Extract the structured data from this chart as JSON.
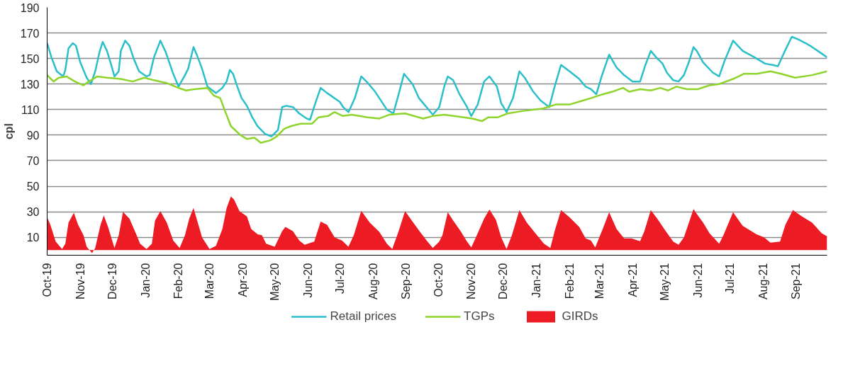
{
  "chart_data": {
    "type": "line",
    "ylabel": "cpl",
    "xlim": [
      "2019-10-01",
      "2021-09-30"
    ],
    "ylim": [
      -4,
      190
    ],
    "yticks": [
      10,
      30,
      50,
      70,
      90,
      110,
      130,
      150,
      170,
      190
    ],
    "xticks": [
      {
        "value": "2019-10-01",
        "label": "Oct-19"
      },
      {
        "value": "2019-11-01",
        "label": "Nov-19"
      },
      {
        "value": "2019-12-01",
        "label": "Dec-19"
      },
      {
        "value": "2020-01-01",
        "label": "Jan-20"
      },
      {
        "value": "2020-02-01",
        "label": "Feb-20"
      },
      {
        "value": "2020-03-01",
        "label": "Mar-20"
      },
      {
        "value": "2020-04-01",
        "label": "Apr-20"
      },
      {
        "value": "2020-05-01",
        "label": "May-20"
      },
      {
        "value": "2020-06-01",
        "label": "Jun-20"
      },
      {
        "value": "2020-07-01",
        "label": "Jul-20"
      },
      {
        "value": "2020-08-01",
        "label": "Aug-20"
      },
      {
        "value": "2020-09-01",
        "label": "Sep-20"
      },
      {
        "value": "2020-10-01",
        "label": "Oct-20"
      },
      {
        "value": "2020-11-01",
        "label": "Nov-20"
      },
      {
        "value": "2020-12-01",
        "label": "Dec-20"
      },
      {
        "value": "2021-01-01",
        "label": "Jan-21"
      },
      {
        "value": "2021-02-01",
        "label": "Feb-21"
      },
      {
        "value": "2021-03-01",
        "label": "Mar-21"
      },
      {
        "value": "2021-04-01",
        "label": "Apr-21"
      },
      {
        "value": "2021-05-01",
        "label": "May-21"
      },
      {
        "value": "2021-06-01",
        "label": "Jun-21"
      },
      {
        "value": "2021-07-01",
        "label": "Jul-21"
      },
      {
        "value": "2021-08-01",
        "label": "Aug-21"
      },
      {
        "value": "2021-09-01",
        "label": "Sep-21"
      }
    ],
    "grid": "y",
    "legend": "bottom",
    "line_style": "solid",
    "marker": "none",
    "series": [
      {
        "name": "Retail prices",
        "color": "#2bbfc9",
        "x": [
          "2019-10-01",
          "2019-10-05",
          "2019-10-10",
          "2019-10-16",
          "2019-10-18",
          "2019-10-21",
          "2019-10-25",
          "2019-10-28",
          "2019-11-01",
          "2019-11-07",
          "2019-11-11",
          "2019-11-15",
          "2019-11-19",
          "2019-11-22",
          "2019-11-26",
          "2019-11-30",
          "2019-12-03",
          "2019-12-07",
          "2019-12-09",
          "2019-12-13",
          "2019-12-17",
          "2019-12-21",
          "2019-12-26",
          "2020-01-02",
          "2020-01-05",
          "2020-01-09",
          "2020-01-15",
          "2020-01-20",
          "2020-01-27",
          "2020-02-01",
          "2020-02-07",
          "2020-02-10",
          "2020-02-15",
          "2020-02-19",
          "2020-02-23",
          "2020-02-28",
          "2020-03-07",
          "2020-03-13",
          "2020-03-17",
          "2020-03-20",
          "2020-03-23",
          "2020-03-27",
          "2020-03-31",
          "2020-04-05",
          "2020-04-10",
          "2020-04-15",
          "2020-04-22",
          "2020-04-28",
          "2020-05-04",
          "2020-05-08",
          "2020-05-12",
          "2020-05-18",
          "2020-05-24",
          "2020-05-31",
          "2020-06-03",
          "2020-06-08",
          "2020-06-13",
          "2020-06-19",
          "2020-07-01",
          "2020-07-04",
          "2020-07-09",
          "2020-07-15",
          "2020-07-21",
          "2020-07-27",
          "2020-08-03",
          "2020-08-14",
          "2020-08-20",
          "2020-08-25",
          "2020-08-30",
          "2020-09-07",
          "2020-09-13",
          "2020-09-26",
          "2020-10-02",
          "2020-10-07",
          "2020-10-10",
          "2020-10-15",
          "2020-10-21",
          "2020-10-28",
          "2020-11-01",
          "2020-11-07",
          "2020-11-13",
          "2020-11-18",
          "2020-11-25",
          "2020-11-29",
          "2020-12-04",
          "2020-12-10",
          "2020-12-16",
          "2020-12-21",
          "2020-12-29",
          "2021-01-05",
          "2021-01-13",
          "2021-01-18",
          "2021-01-24",
          "2021-02-01",
          "2021-02-10",
          "2021-02-16",
          "2021-02-21",
          "2021-02-26",
          "2021-03-03",
          "2021-03-10",
          "2021-03-17",
          "2021-03-24",
          "2021-04-01",
          "2021-04-08",
          "2021-04-13",
          "2021-04-18",
          "2021-04-23",
          "2021-04-29",
          "2021-05-03",
          "2021-05-09",
          "2021-05-14",
          "2021-05-19",
          "2021-05-24",
          "2021-05-28",
          "2021-05-31",
          "2021-06-06",
          "2021-06-15",
          "2021-06-21",
          "2021-06-26",
          "2021-07-04",
          "2021-07-13",
          "2021-07-24",
          "2021-08-03",
          "2021-08-10",
          "2021-08-15",
          "2021-08-21",
          "2021-08-28",
          "2021-09-03",
          "2021-09-10",
          "2021-09-16",
          "2021-09-23",
          "2021-09-30"
        ],
        "values": [
          162,
          151,
          140,
          136,
          141,
          158,
          162,
          160,
          147,
          135,
          130,
          140,
          155,
          163,
          156,
          145,
          136,
          140,
          156,
          164,
          160,
          150,
          140,
          136,
          137,
          151,
          164,
          155,
          138,
          128,
          137,
          142,
          159,
          151,
          142,
          128,
          123,
          127,
          132,
          141,
          138,
          128,
          119,
          113,
          104,
          97,
          91,
          89,
          94,
          112,
          113,
          112,
          107,
          103,
          102,
          115,
          127,
          123,
          116,
          112,
          108,
          119,
          136,
          131,
          124,
          110,
          107,
          122,
          138,
          130,
          119,
          106,
          112,
          129,
          136,
          133,
          122,
          112,
          105,
          114,
          132,
          136,
          128,
          115,
          108,
          119,
          140,
          135,
          124,
          117,
          112,
          128,
          145,
          140,
          134,
          128,
          126,
          122,
          136,
          153,
          143,
          137,
          132,
          132,
          145,
          156,
          151,
          146,
          139,
          133,
          132,
          137,
          148,
          159,
          156,
          147,
          139,
          136,
          148,
          164,
          156,
          151,
          146,
          145,
          144,
          155,
          167,
          165,
          162,
          159,
          155,
          151
        ]
      },
      {
        "name": "TGPs",
        "color": "#8fd42c",
        "x": [
          "2019-10-01",
          "2019-10-07",
          "2019-10-12",
          "2019-10-19",
          "2019-10-27",
          "2019-11-04",
          "2019-11-09",
          "2019-11-17",
          "2019-11-26",
          "2019-12-09",
          "2019-12-20",
          "2019-12-31",
          "2020-01-09",
          "2020-01-20",
          "2020-02-01",
          "2020-02-08",
          "2020-02-16",
          "2020-02-28",
          "2020-03-05",
          "2020-03-11",
          "2020-03-15",
          "2020-03-21",
          "2020-03-30",
          "2020-04-05",
          "2020-04-12",
          "2020-04-18",
          "2020-04-27",
          "2020-05-03",
          "2020-05-10",
          "2020-05-16",
          "2020-05-25",
          "2020-06-05",
          "2020-06-11",
          "2020-06-20",
          "2020-06-26",
          "2020-07-04",
          "2020-07-12",
          "2020-07-27",
          "2020-08-07",
          "2020-08-16",
          "2020-08-31",
          "2020-09-17",
          "2020-09-26",
          "2020-10-07",
          "2020-10-25",
          "2020-11-02",
          "2020-11-11",
          "2020-11-17",
          "2020-11-26",
          "2020-12-05",
          "2020-12-20",
          "2021-01-08",
          "2021-01-19",
          "2021-02-01",
          "2021-02-13",
          "2021-02-21",
          "2021-03-04",
          "2021-03-13",
          "2021-03-23",
          "2021-03-29",
          "2021-04-08",
          "2021-04-18",
          "2021-04-27",
          "2021-05-04",
          "2021-05-12",
          "2021-05-22",
          "2021-06-01",
          "2021-06-12",
          "2021-06-21",
          "2021-07-04",
          "2021-07-14",
          "2021-07-26",
          "2021-08-08",
          "2021-08-18",
          "2021-08-31",
          "2021-09-16",
          "2021-09-30"
        ],
        "values": [
          137,
          132,
          135,
          136,
          132,
          129,
          132,
          136,
          135,
          134,
          132,
          135,
          133,
          131,
          127,
          125,
          126,
          127,
          121,
          119,
          110,
          97,
          90,
          87,
          88,
          84,
          86,
          89,
          95,
          97,
          99,
          99,
          104,
          105,
          108,
          105,
          106,
          104,
          103,
          106,
          107,
          103,
          105,
          106,
          104,
          103,
          101,
          104,
          104,
          107,
          109,
          111,
          114,
          114,
          117,
          119,
          122,
          124,
          127,
          124,
          126,
          125,
          127,
          125,
          128,
          126,
          126,
          129,
          130,
          134,
          138,
          138,
          140,
          138,
          135,
          137,
          140
        ]
      },
      {
        "name": "GIRDs",
        "type": "area",
        "color": "#ed1c24",
        "x": [
          "2019-10-01",
          "2019-10-04",
          "2019-10-09",
          "2019-10-15",
          "2019-10-18",
          "2019-10-21",
          "2019-10-26",
          "2019-10-30",
          "2019-11-04",
          "2019-11-07",
          "2019-11-12",
          "2019-11-15",
          "2019-11-20",
          "2019-11-23",
          "2019-11-27",
          "2019-12-03",
          "2019-12-07",
          "2019-12-11",
          "2019-12-17",
          "2019-12-23",
          "2019-12-27",
          "2020-01-02",
          "2020-01-07",
          "2020-01-10",
          "2020-01-15",
          "2020-01-21",
          "2020-01-27",
          "2020-02-02",
          "2020-02-07",
          "2020-02-11",
          "2020-02-15",
          "2020-02-19",
          "2020-02-23",
          "2020-03-01",
          "2020-03-07",
          "2020-03-13",
          "2020-03-17",
          "2020-03-21",
          "2020-03-24",
          "2020-03-29",
          "2020-04-05",
          "2020-04-09",
          "2020-04-15",
          "2020-04-19",
          "2020-04-23",
          "2020-05-01",
          "2020-05-08",
          "2020-05-11",
          "2020-05-18",
          "2020-05-24",
          "2020-05-29",
          "2020-06-07",
          "2020-06-13",
          "2020-06-19",
          "2020-06-26",
          "2020-07-03",
          "2020-07-09",
          "2020-07-14",
          "2020-07-21",
          "2020-07-29",
          "2020-08-07",
          "2020-08-14",
          "2020-08-19",
          "2020-08-25",
          "2020-08-31",
          "2020-09-07",
          "2020-09-15",
          "2020-09-21",
          "2020-09-26",
          "2020-10-02",
          "2020-10-05",
          "2020-10-10",
          "2020-10-15",
          "2020-10-22",
          "2020-10-28",
          "2020-11-01",
          "2020-11-07",
          "2020-11-13",
          "2020-11-18",
          "2020-11-24",
          "2020-11-29",
          "2020-12-04",
          "2020-12-09",
          "2020-12-16",
          "2020-12-23",
          "2020-12-31",
          "2021-01-08",
          "2021-01-14",
          "2021-01-18",
          "2021-01-24",
          "2021-02-01",
          "2021-02-10",
          "2021-02-16",
          "2021-02-21",
          "2021-02-25",
          "2021-03-04",
          "2021-03-10",
          "2021-03-17",
          "2021-03-24",
          "2021-03-31",
          "2021-04-08",
          "2021-04-12",
          "2021-04-18",
          "2021-04-24",
          "2021-05-02",
          "2021-05-09",
          "2021-05-14",
          "2021-05-19",
          "2021-05-28",
          "2021-05-31",
          "2021-06-06",
          "2021-06-12",
          "2021-06-21",
          "2021-06-25",
          "2021-07-04",
          "2021-07-13",
          "2021-07-26",
          "2021-08-02",
          "2021-08-08",
          "2021-08-17",
          "2021-08-22",
          "2021-08-29",
          "2021-09-05",
          "2021-09-16",
          "2021-09-25",
          "2021-09-30"
        ],
        "values": [
          25.6,
          19.8,
          6.7,
          0.9,
          5,
          21.5,
          29.3,
          19.8,
          11.6,
          2.6,
          -2.4,
          1.7,
          19.8,
          27.2,
          18.2,
          1.7,
          11.6,
          30,
          24.7,
          13.2,
          5,
          0.9,
          5,
          23.1,
          30.5,
          21.5,
          7.5,
          1.7,
          11.6,
          24.7,
          33,
          21.5,
          10,
          0.9,
          3.4,
          16.5,
          33,
          42,
          39.5,
          30.5,
          26.4,
          16.5,
          12.4,
          11.6,
          5,
          2.6,
          14.9,
          18.2,
          14.9,
          7.5,
          4.2,
          6.7,
          22.3,
          19.8,
          10,
          7.5,
          2.6,
          11.6,
          30.8,
          21.5,
          14.1,
          5,
          0.9,
          14.9,
          30.5,
          22.3,
          13.2,
          6.7,
          1.7,
          6.7,
          11.6,
          29.7,
          23.1,
          14.9,
          6.7,
          2.1,
          13.2,
          24.7,
          31.8,
          23.9,
          10,
          0.9,
          11.6,
          31.3,
          21.5,
          13.2,
          5,
          1.7,
          14.9,
          31.3,
          25.6,
          18.2,
          9.2,
          7.5,
          2.1,
          16.5,
          29.7,
          16.5,
          9.2,
          9.2,
          7,
          14.9,
          31.3,
          24.7,
          14.9,
          6.7,
          4.2,
          10,
          32.1,
          28.4,
          21.5,
          13.2,
          5,
          11.6,
          29.7,
          19,
          12.4,
          10,
          5.8,
          6.7,
          19.8,
          31.3,
          27.2,
          21.5,
          13.2,
          10.8
        ]
      }
    ]
  }
}
